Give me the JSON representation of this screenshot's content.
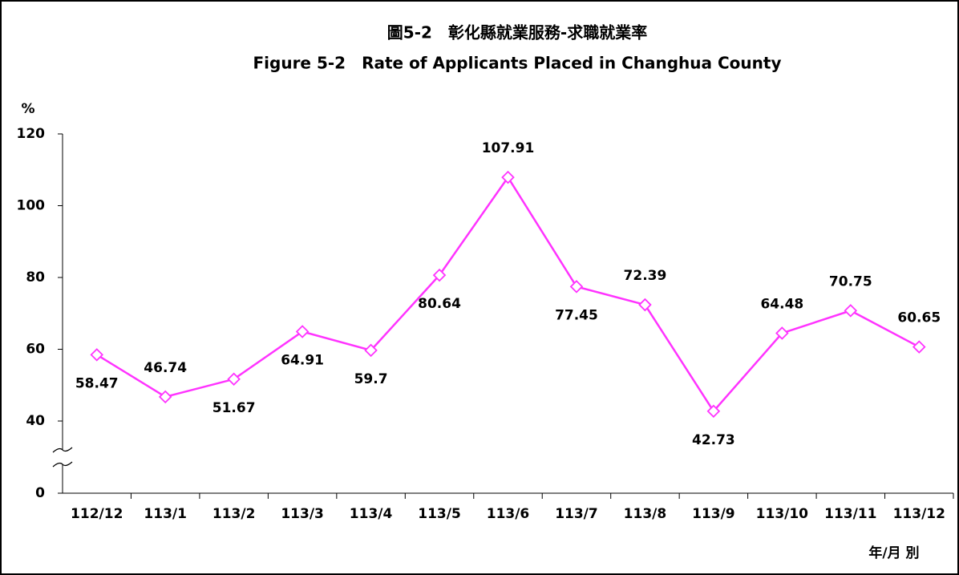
{
  "chart_data": {
    "type": "line",
    "title": "圖5-2　彰化縣就業服務-求職就業率",
    "subtitle": "Figure 5-2　Rate of Applicants Placed in Changhua County",
    "y_label": "%",
    "x_label": "年/月 別",
    "categories": [
      "112/12",
      "113/1",
      "113/2",
      "113/3",
      "113/4",
      "113/5",
      "113/6",
      "113/7",
      "113/8",
      "113/9",
      "113/10",
      "113/11",
      "113/12"
    ],
    "series": [
      {
        "name": "求職就業率",
        "color": "#ff33ff",
        "values": [
          58.47,
          46.74,
          51.67,
          64.91,
          59.7,
          80.64,
          107.91,
          77.45,
          72.39,
          42.73,
          64.48,
          70.75,
          60.65
        ]
      }
    ],
    "ylim": [
      0,
      120
    ],
    "y_break": [
      0,
      40
    ],
    "yticks": [
      0,
      40,
      60,
      80,
      100,
      120
    ],
    "grid": false
  }
}
